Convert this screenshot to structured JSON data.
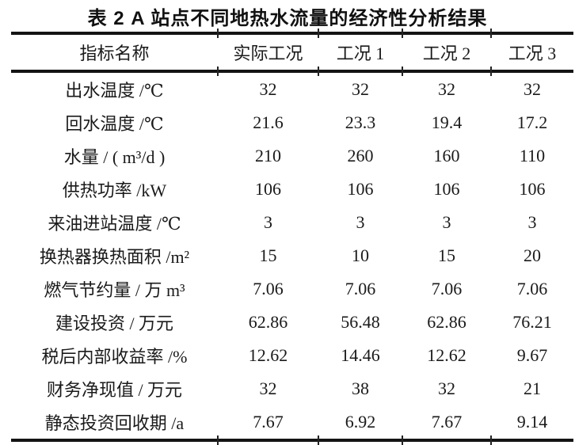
{
  "table": {
    "title": "表 2  A 站点不同地热水流量的经济性分析结果",
    "columns": [
      "指标名称",
      "实际工况",
      "工况 1",
      "工况 2",
      "工况 3"
    ],
    "rows": [
      {
        "label": "出水温度 /℃",
        "values": [
          "32",
          "32",
          "32",
          "32"
        ]
      },
      {
        "label": "回水温度 /℃",
        "values": [
          "21.6",
          "23.3",
          "19.4",
          "17.2"
        ]
      },
      {
        "label": "水量 / ( m³/d )",
        "values": [
          "210",
          "260",
          "160",
          "110"
        ]
      },
      {
        "label": "供热功率 /kW",
        "values": [
          "106",
          "106",
          "106",
          "106"
        ]
      },
      {
        "label": "来油进站温度 /℃",
        "values": [
          "3",
          "3",
          "3",
          "3"
        ]
      },
      {
        "label": "换热器换热面积 /m²",
        "values": [
          "15",
          "10",
          "15",
          "20"
        ]
      },
      {
        "label": "燃气节约量 / 万 m³",
        "values": [
          "7.06",
          "7.06",
          "7.06",
          "7.06"
        ]
      },
      {
        "label": "建设投资 / 万元",
        "values": [
          "62.86",
          "56.48",
          "62.86",
          "76.21"
        ]
      },
      {
        "label": "税后内部收益率 /%",
        "values": [
          "12.62",
          "14.46",
          "12.62",
          "9.67"
        ]
      },
      {
        "label": "财务净现值 / 万元",
        "values": [
          "32",
          "38",
          "32",
          "21"
        ]
      },
      {
        "label": "静态投资回收期 /a",
        "values": [
          "7.67",
          "6.92",
          "7.67",
          "9.14"
        ]
      }
    ]
  },
  "colors": {
    "background": "#ffffff",
    "text": "#1a1a1a",
    "rule": "#141414"
  }
}
